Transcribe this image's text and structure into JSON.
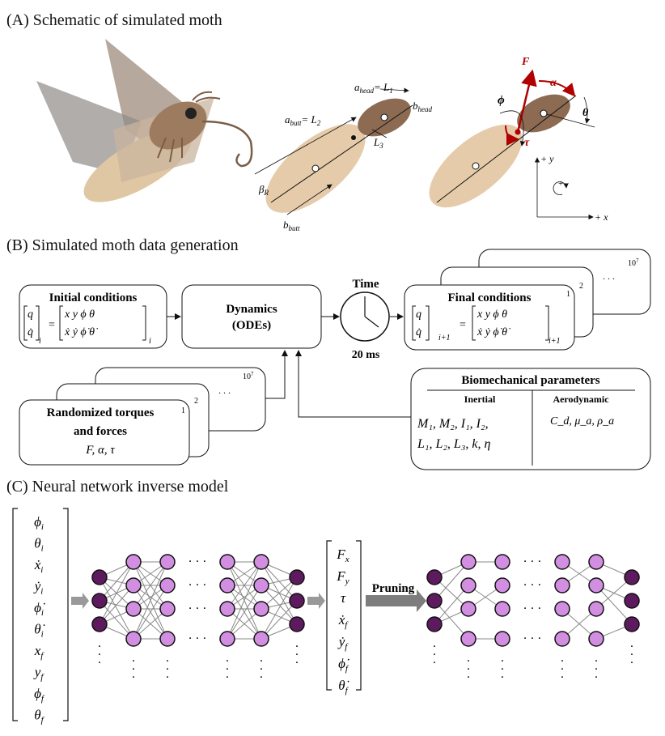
{
  "sections": {
    "a_title": "(A) Schematic of simulated moth",
    "b_title": "(B) Simulated moth data generation",
    "c_title": "(C) Neural network inverse model"
  },
  "schematic": {
    "a_head_label": "a",
    "a_head_sub": "head",
    "a_head_eq": "= L",
    "a_head_eq_sub": "1",
    "b_head_label": "b",
    "b_head_sub": "head",
    "a_butt_label": "a",
    "a_butt_sub": "butt",
    "a_butt_eq": "= L",
    "a_butt_eq_sub": "2",
    "l3_label": "L",
    "l3_sub": "3",
    "beta_label": "β",
    "beta_sub": "R",
    "b_butt_label": "b",
    "b_butt_sub": "butt",
    "F_label": "F",
    "alpha_label": "α",
    "phi_label": "ϕ",
    "theta_label": "θ",
    "tau_label": "τ",
    "y_axis": "+ y",
    "x_axis": "+ x",
    "plus_rot": "+"
  },
  "generation": {
    "initial_title": "Initial conditions",
    "initial_lhs_top": "q",
    "initial_lhs_bot": "q̇",
    "initial_lhs_sub": "i",
    "initial_rhs_top": "x  y  ϕ  θ",
    "initial_rhs_bot": "ẋ  ẏ  ϕ̇  θ̇",
    "initial_rhs_sub": "i",
    "dynamics_line1": "Dynamics",
    "dynamics_line2": "(ODEs)",
    "time_label": "Time",
    "time_value": "20 ms",
    "final_title": "Final conditions",
    "final_lhs_sub": "i+1",
    "final_rhs_sub": "i+1",
    "final_index": "1",
    "final_index2": "2",
    "final_count": "10",
    "final_count_exp": "7",
    "torque_line1": "Randomized torques",
    "torque_line2": "and forces",
    "torque_vars": "F, α, τ",
    "torque_index": "1",
    "torque_index2": "2",
    "torque_count": "10",
    "torque_count_exp": "7",
    "bio_title": "Biomechanical parameters",
    "bio_inertial": "Inertial",
    "bio_aero": "Aerodynamic",
    "bio_inertial_row1": "M₁, M₂, I₁, I₂,",
    "bio_inertial_row2": "L₁, L₂, L₃, k, η",
    "bio_aero_row1": "C_d, μ_a, ρ_a",
    "dots": ". . ."
  },
  "network": {
    "inputs": [
      "ϕ_i",
      "θ_i",
      "ẋ_i",
      "ẏ_i",
      "ϕ̇_i",
      "θ̇_i",
      "x_f",
      "y_f",
      "ϕ_f",
      "θ_f"
    ],
    "outputs": [
      "F_x",
      "F_y",
      "τ",
      "ẋ_f",
      "ẏ_f",
      "ϕ̇_f",
      "θ̇_f"
    ],
    "pruning_label": "Pruning",
    "input_node_color": "#5e1a5e",
    "hidden_node_color": "#d28ee0"
  }
}
